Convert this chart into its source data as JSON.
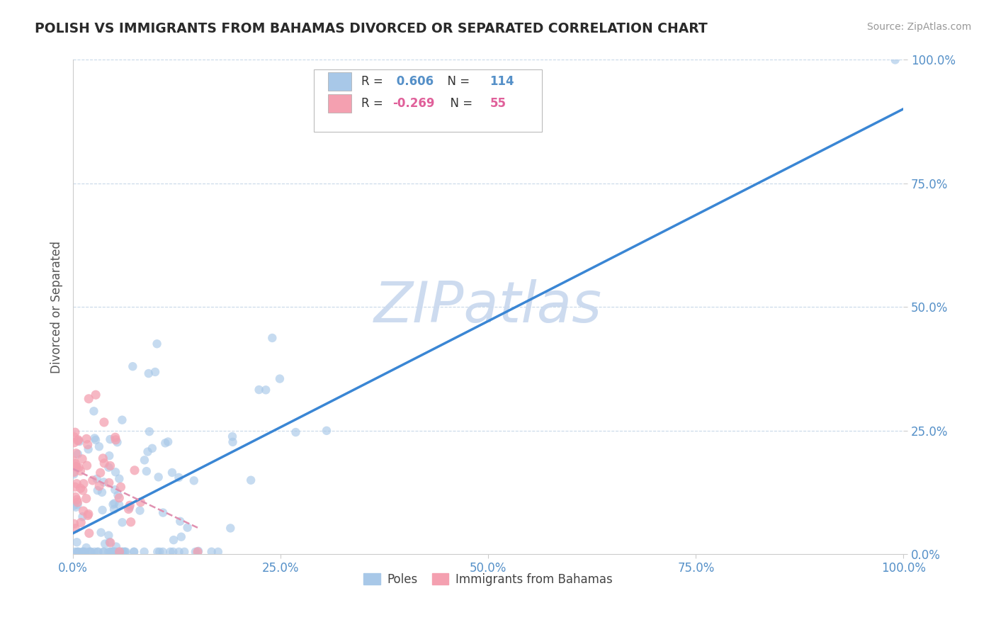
{
  "title": "POLISH VS IMMIGRANTS FROM BAHAMAS DIVORCED OR SEPARATED CORRELATION CHART",
  "source": "Source: ZipAtlas.com",
  "ylabel": "Divorced or Separated",
  "legend_label_1": "Poles",
  "legend_label_2": "Immigrants from Bahamas",
  "r1": 0.606,
  "n1": 114,
  "r2": -0.269,
  "n2": 55,
  "color1": "#a8c8e8",
  "color2": "#f4a0b0",
  "line_color1": "#3a86d4",
  "line_color2": "#e090b0",
  "background": "#ffffff",
  "watermark": "ZIPatlas",
  "watermark_color_zip": "#c8d8ee",
  "watermark_color_atlas": "#a0b8d8",
  "xlim": [
    0,
    100
  ],
  "ylim": [
    0,
    100
  ],
  "xticks": [
    0,
    25,
    50,
    75,
    100
  ],
  "yticks": [
    0,
    25,
    50,
    75,
    100
  ],
  "xticklabels": [
    "0.0%",
    "25.0%",
    "50.0%",
    "75.0%",
    "100.0%"
  ],
  "yticklabels": [
    "0.0%",
    "25.0%",
    "50.0%",
    "75.0%",
    "100.0%"
  ],
  "grid_color": "#c8d8e8",
  "tick_color": "#5590c8"
}
